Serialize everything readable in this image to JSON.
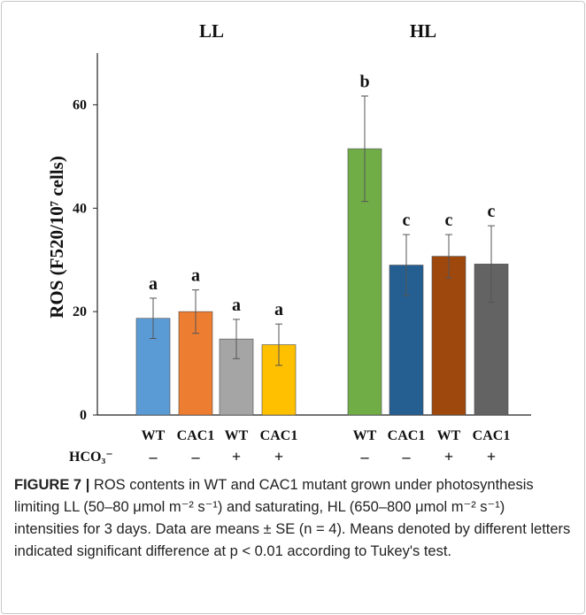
{
  "chart_data": {
    "type": "bar",
    "group_labels": [
      "LL",
      "HL"
    ],
    "ylabel": "ROS (F520/10⁷ cells)",
    "ylim": [
      0,
      70
    ],
    "yticks": [
      0,
      20,
      40,
      60
    ],
    "grid": false,
    "row_label": "HCO₃⁻",
    "categories": [
      "WT",
      "CAC1",
      "WT",
      "CAC1",
      "WT",
      "CAC1",
      "WT",
      "CAC1"
    ],
    "hco3": [
      "–",
      "–",
      "+",
      "+",
      "–",
      "–",
      "+",
      "+"
    ],
    "values": [
      18.7,
      20.0,
      14.7,
      13.6,
      51.5,
      29.0,
      30.7,
      29.2
    ],
    "errors": [
      3.9,
      4.2,
      3.8,
      4.0,
      10.2,
      5.9,
      4.2,
      7.4
    ],
    "letters": [
      "a",
      "a",
      "a",
      "a",
      "b",
      "c",
      "c",
      "c"
    ],
    "colors": [
      "#5b9bd5",
      "#ed7d31",
      "#a5a5a5",
      "#ffc000",
      "#70ad47",
      "#255e91",
      "#9e480e",
      "#636363"
    ]
  },
  "caption": {
    "label": "FIGURE 7",
    "text": "ROS contents in WT and CAC1 mutant grown under photosynthesis limiting LL (50–80 μmol m⁻² s⁻¹) and saturating, HL (650–800 μmol m⁻² s⁻¹) intensities for 3 days. Data are means ± SE (n = 4). Means denoted by different letters indicated significant difference at p < 0.01 according to Tukey's test."
  }
}
